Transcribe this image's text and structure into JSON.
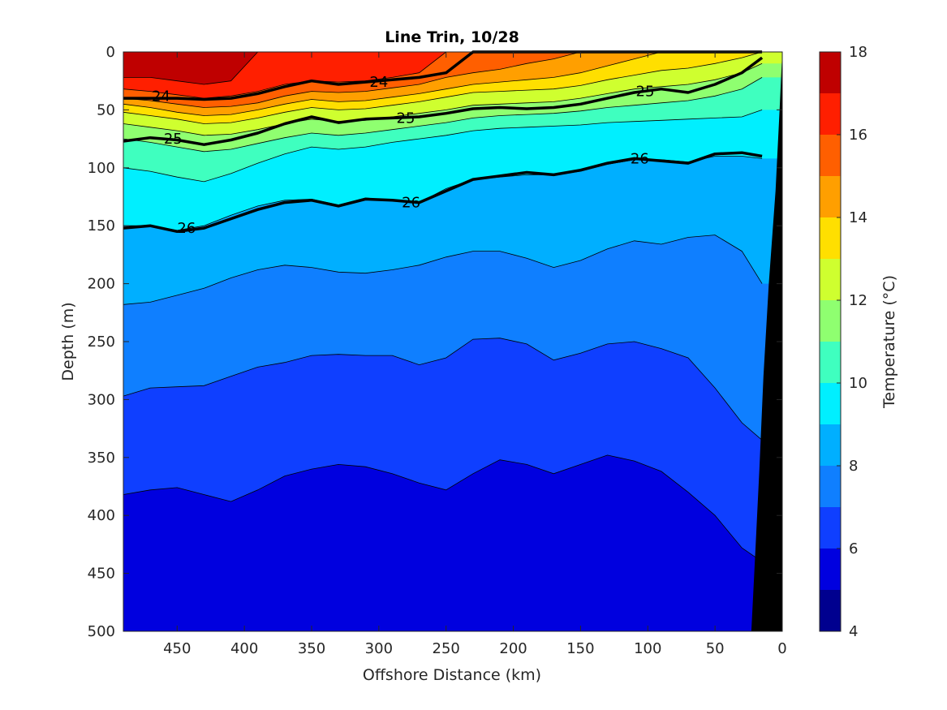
{
  "chart_data": {
    "type": "contour",
    "title": "Line Trin, 10/28",
    "xlabel": "Offshore Distance (km)",
    "ylabel": "Depth (m)",
    "xlim": [
      490,
      0
    ],
    "ylim": [
      0,
      500
    ],
    "x_reversed": true,
    "y_reversed": true,
    "xticks": [
      450,
      400,
      350,
      300,
      250,
      200,
      150,
      100,
      50,
      0
    ],
    "yticks": [
      0,
      50,
      100,
      150,
      200,
      250,
      300,
      350,
      400,
      450,
      500
    ],
    "colorbar": {
      "label": "Temperature (°C)",
      "range": [
        4,
        18
      ],
      "ticks": [
        4,
        6,
        8,
        10,
        12,
        14,
        16,
        18
      ],
      "levels": [
        4,
        5,
        6,
        7,
        8,
        9,
        10,
        11,
        12,
        13,
        14,
        15,
        16,
        17,
        18
      ],
      "colors": [
        "#00008f",
        "#0000df",
        "#0f3fff",
        "#0f7fff",
        "#00afff",
        "#00efff",
        "#3fffbf",
        "#8fff70",
        "#cfff2f",
        "#ffdf00",
        "#ff9f00",
        "#ff5f00",
        "#ff1f00",
        "#bf0000"
      ]
    },
    "x": [
      490,
      470,
      450,
      430,
      410,
      390,
      370,
      350,
      330,
      310,
      290,
      270,
      250,
      230,
      210,
      190,
      170,
      150,
      130,
      110,
      90,
      70,
      50,
      30,
      15
    ],
    "isotherm_depths": [
      {
        "temp": 17,
        "depths": [
          22,
          22,
          25,
          28,
          25,
          0,
          0,
          0,
          0,
          0,
          0,
          0,
          0,
          0,
          0,
          0,
          0,
          0,
          0,
          0,
          0,
          0,
          0,
          0,
          0
        ]
      },
      {
        "temp": 16,
        "depths": [
          32,
          34,
          37,
          40,
          38,
          34,
          28,
          25,
          26,
          25,
          22,
          18,
          0,
          0,
          0,
          0,
          0,
          0,
          0,
          0,
          0,
          0,
          0,
          0,
          0
        ]
      },
      {
        "temp": 15,
        "depths": [
          40,
          42,
          45,
          48,
          47,
          44,
          38,
          34,
          35,
          34,
          31,
          28,
          22,
          18,
          15,
          10,
          6,
          0,
          0,
          0,
          0,
          0,
          0,
          0,
          0
        ]
      },
      {
        "temp": 14,
        "depths": [
          45,
          48,
          52,
          55,
          54,
          50,
          45,
          41,
          43,
          42,
          39,
          36,
          32,
          28,
          26,
          24,
          22,
          18,
          12,
          6,
          0,
          0,
          0,
          0,
          0
        ]
      },
      {
        "temp": 13,
        "depths": [
          52,
          55,
          58,
          62,
          61,
          57,
          52,
          48,
          50,
          49,
          46,
          43,
          39,
          35,
          34,
          33,
          32,
          29,
          24,
          20,
          16,
          14,
          10,
          5,
          0
        ]
      },
      {
        "temp": 12,
        "depths": [
          62,
          65,
          68,
          72,
          71,
          67,
          62,
          58,
          60,
          59,
          56,
          53,
          50,
          46,
          45,
          44,
          43,
          40,
          36,
          32,
          30,
          28,
          24,
          18,
          10
        ]
      },
      {
        "temp": 11,
        "depths": [
          75,
          78,
          82,
          86,
          84,
          79,
          74,
          70,
          72,
          70,
          67,
          64,
          61,
          57,
          55,
          54,
          53,
          51,
          48,
          46,
          44,
          42,
          38,
          32,
          22
        ]
      },
      {
        "temp": 10,
        "depths": [
          100,
          103,
          108,
          112,
          105,
          96,
          88,
          82,
          84,
          82,
          78,
          75,
          72,
          68,
          66,
          65,
          64,
          63,
          61,
          60,
          59,
          58,
          57,
          56,
          50
        ]
      },
      {
        "temp": 9,
        "depths": [
          150,
          150,
          154,
          150,
          141,
          133,
          128,
          127,
          132,
          126,
          128,
          130,
          118,
          110,
          108,
          106,
          106,
          103,
          97,
          93,
          93,
          95,
          90,
          90,
          92
        ]
      },
      {
        "temp": 8,
        "depths": [
          218,
          216,
          210,
          204,
          195,
          188,
          184,
          186,
          190,
          191,
          188,
          184,
          177,
          172,
          172,
          178,
          186,
          180,
          170,
          163,
          166,
          160,
          158,
          172,
          200
        ]
      },
      {
        "temp": 7,
        "depths": [
          297,
          290,
          289,
          288,
          280,
          272,
          268,
          262,
          261,
          262,
          262,
          270,
          264,
          248,
          247,
          252,
          266,
          260,
          252,
          250,
          256,
          264,
          290,
          320,
          335
        ]
      },
      {
        "temp": 6,
        "depths": [
          382,
          378,
          376,
          382,
          388,
          378,
          366,
          360,
          356,
          358,
          364,
          372,
          378,
          364,
          352,
          356,
          364,
          356,
          348,
          353,
          362,
          380,
          400,
          428,
          440
        ]
      }
    ],
    "contour_lines": [
      {
        "label": "24",
        "depths": [
          40,
          40,
          40,
          41,
          40,
          36,
          30,
          25,
          28,
          26,
          24,
          22,
          18,
          0,
          0,
          0,
          0,
          0,
          0,
          0,
          0,
          0,
          0,
          0,
          0
        ]
      },
      {
        "label": "25",
        "depths": [
          77,
          74,
          76,
          80,
          76,
          70,
          62,
          56,
          61,
          58,
          57,
          56,
          53,
          49,
          48,
          49,
          48,
          45,
          40,
          35,
          32,
          35,
          28,
          18,
          5
        ]
      },
      {
        "label": "26",
        "depths": [
          152,
          150,
          155,
          152,
          144,
          136,
          130,
          128,
          133,
          127,
          128,
          130,
          120,
          110,
          107,
          104,
          106,
          102,
          96,
          92,
          94,
          96,
          88,
          87,
          90
        ]
      }
    ],
    "contour_label_positions": [
      {
        "label": "24",
        "x": 462,
        "y": 38
      },
      {
        "label": "24",
        "x": 300,
        "y": 26
      },
      {
        "label": "25",
        "x": 453,
        "y": 75
      },
      {
        "label": "25",
        "x": 280,
        "y": 57
      },
      {
        "label": "25",
        "x": 102,
        "y": 34
      },
      {
        "label": "26",
        "x": 443,
        "y": 152
      },
      {
        "label": "26",
        "x": 276,
        "y": 130
      },
      {
        "label": "26",
        "x": 106,
        "y": 92
      }
    ],
    "bottom_topography": [
      [
        0,
        0
      ],
      [
        2,
        50
      ],
      [
        5,
        120
      ],
      [
        10,
        200
      ],
      [
        14,
        280
      ],
      [
        17,
        360
      ],
      [
        20,
        430
      ],
      [
        23,
        500
      ],
      [
        0,
        500
      ]
    ]
  }
}
